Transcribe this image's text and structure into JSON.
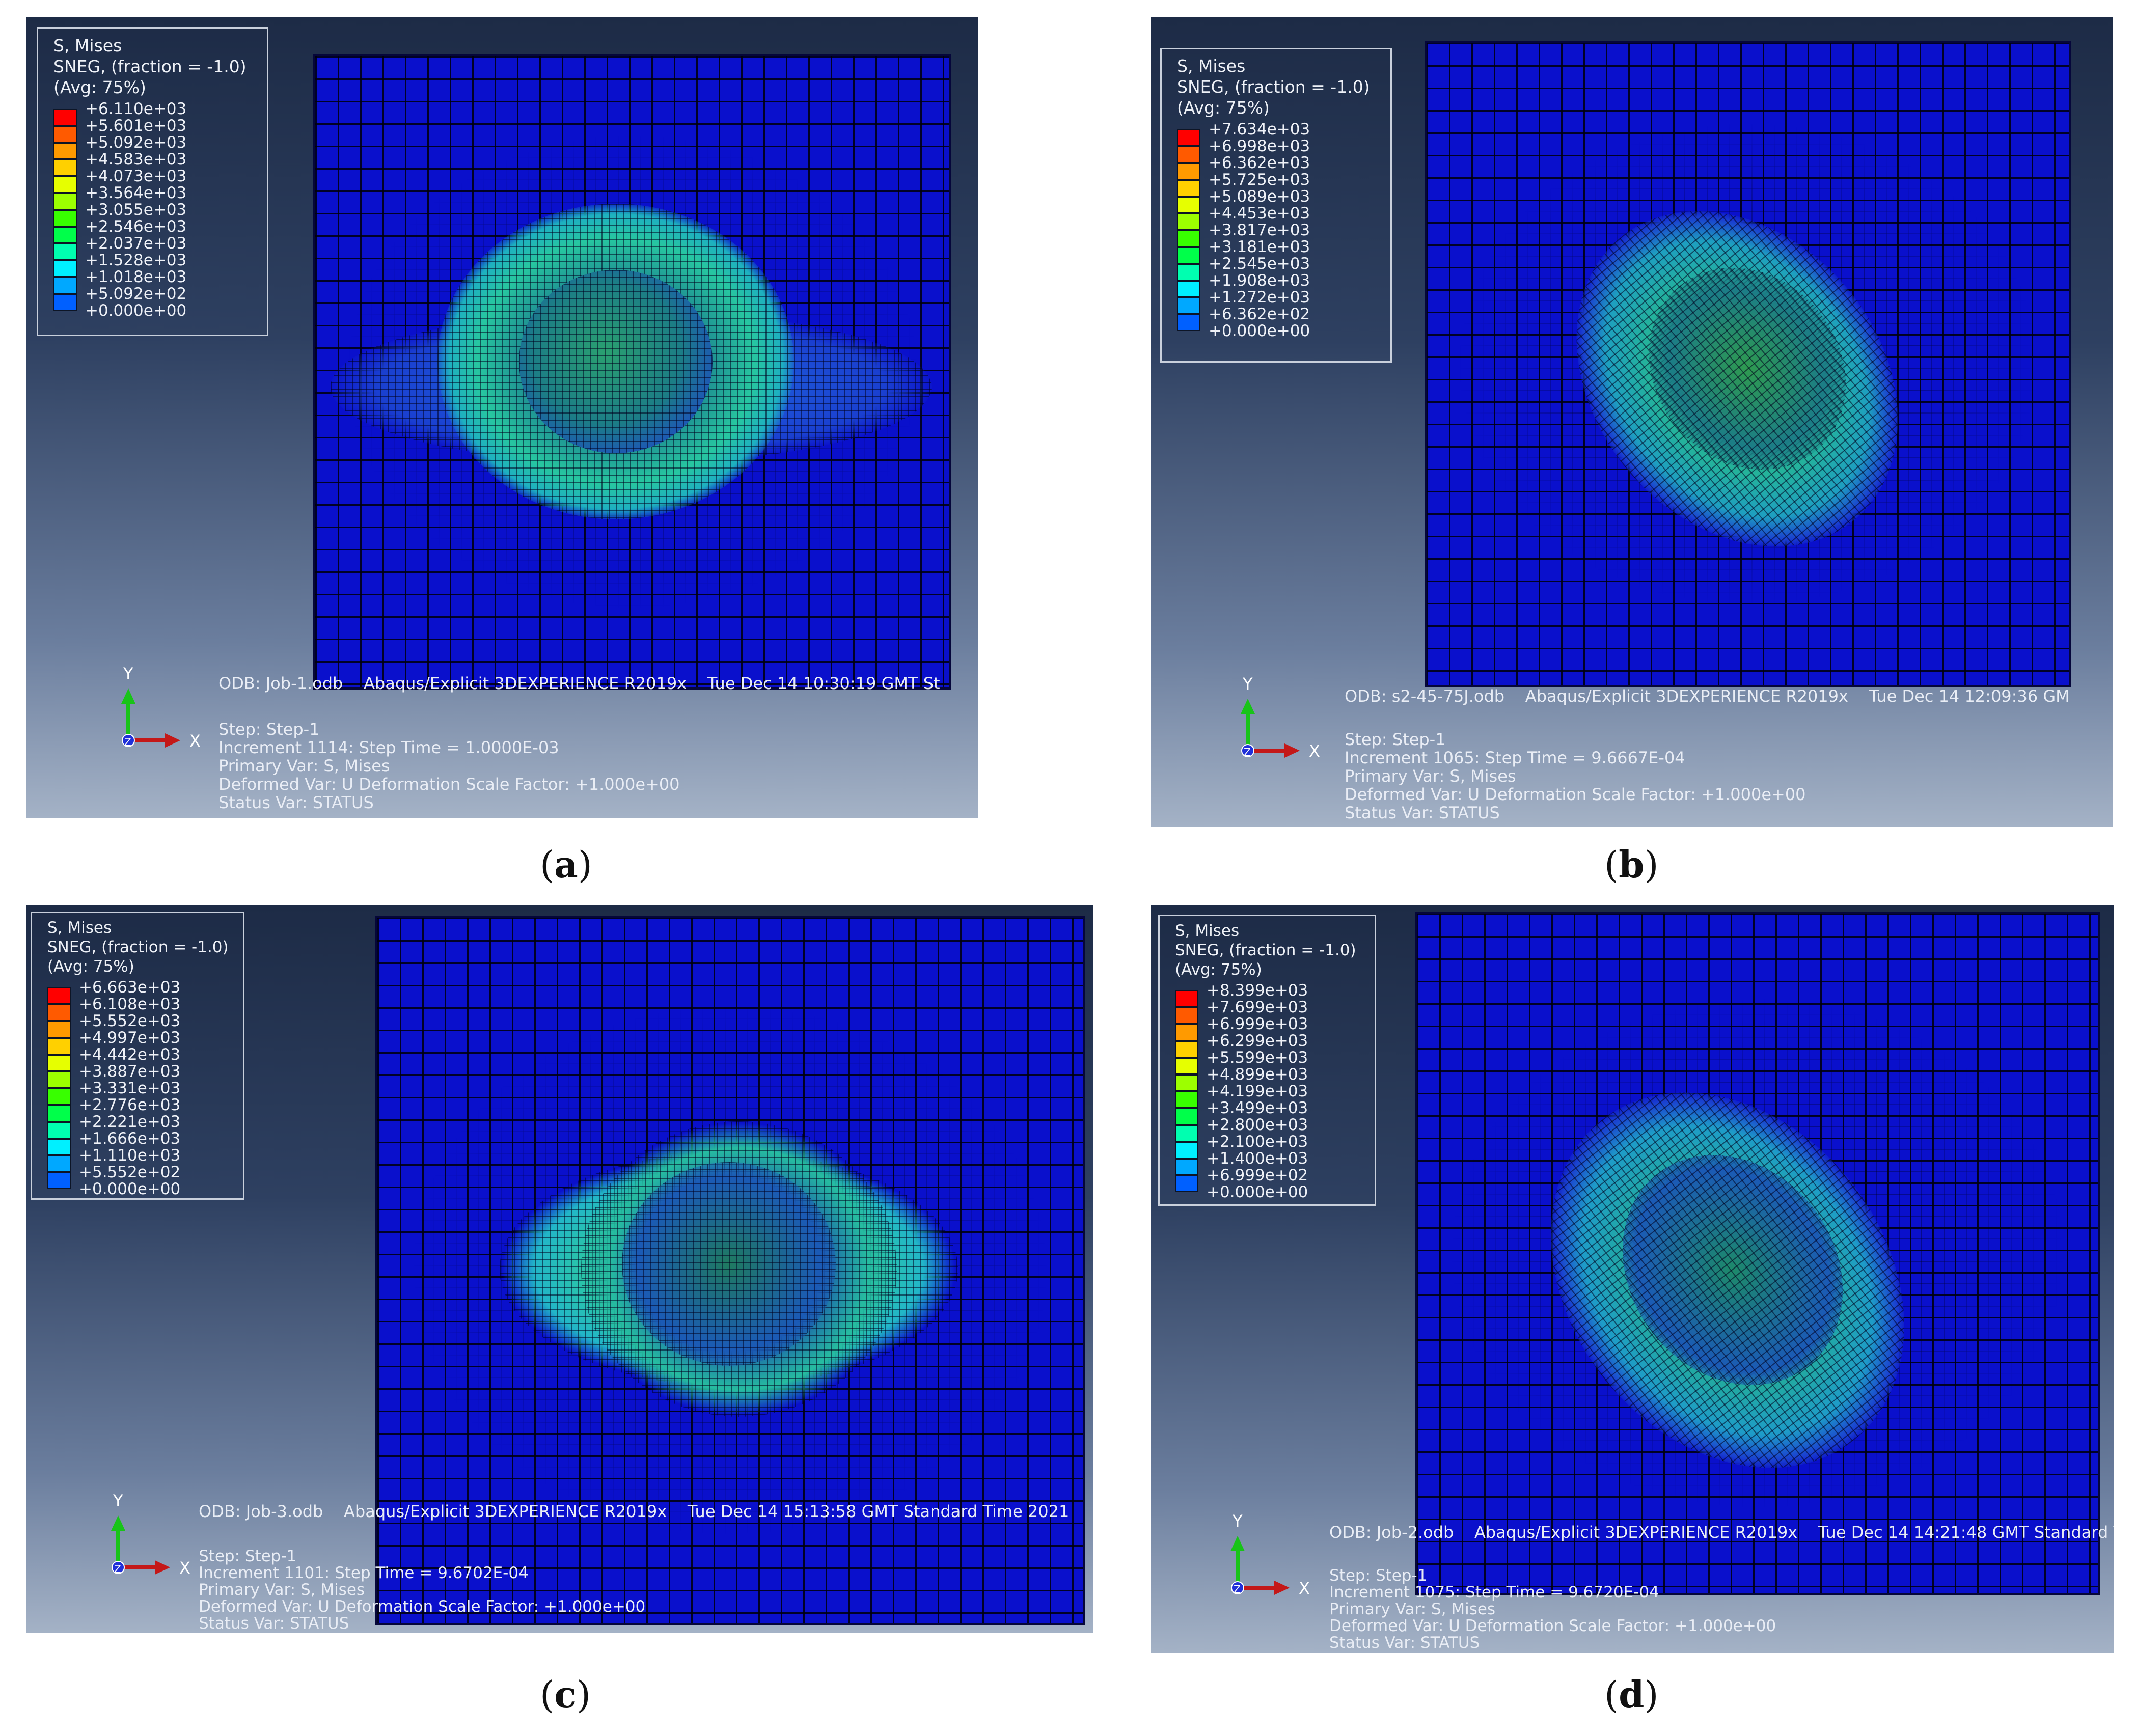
{
  "colors": {
    "mesh_blue": "#0a10cc",
    "legend_scale": [
      "#ff0000",
      "#ff5a00",
      "#ff9a00",
      "#ffd000",
      "#e6ff00",
      "#9cff00",
      "#38ff00",
      "#00ff4a",
      "#00ffb0",
      "#00f0ff",
      "#00a8ff",
      "#0060ff",
      "#0000ff"
    ]
  },
  "panels": [
    {
      "caption": "a",
      "legend_header": [
        "S, Mises",
        "SNEG, (fraction = -1.0)",
        "(Avg: 75%)"
      ],
      "legend_values": [
        "+6.110e+03",
        "+5.601e+03",
        "+5.092e+03",
        "+4.583e+03",
        "+4.073e+03",
        "+3.564e+03",
        "+3.055e+03",
        "+2.546e+03",
        "+2.037e+03",
        "+1.528e+03",
        "+1.018e+03",
        "+5.092e+02",
        "+0.000e+00"
      ],
      "odb": "ODB: Job-1.odb",
      "solver": "Abaqus/Explicit 3DEXPERIENCE R2019x",
      "date": "Tue Dec 14 10:30:19 GMT St",
      "step": "Step: Step-1",
      "increment": "Increment      1114: Step Time =    1.0000E-03",
      "primary": "Primary Var: S, Mises",
      "deformed": "Deformed Var: U   Deformation Scale Factor: +1.000e+00",
      "status": "Status Var: STATUS",
      "axis_y": "Y",
      "axis_x": "X",
      "axis_z": "Z"
    },
    {
      "caption": "b",
      "legend_header": [
        "S, Mises",
        "SNEG, (fraction = -1.0)",
        "(Avg: 75%)"
      ],
      "legend_values": [
        "+7.634e+03",
        "+6.998e+03",
        "+6.362e+03",
        "+5.725e+03",
        "+5.089e+03",
        "+4.453e+03",
        "+3.817e+03",
        "+3.181e+03",
        "+2.545e+03",
        "+1.908e+03",
        "+1.272e+03",
        "+6.362e+02",
        "+0.000e+00"
      ],
      "odb": "ODB: s2-45-75J.odb",
      "solver": "Abaqus/Explicit 3DEXPERIENCE R2019x",
      "date": "Tue Dec 14 12:09:36 GM",
      "step": "Step: Step-1",
      "increment": "Increment      1065: Step Time =    9.6667E-04",
      "primary": "Primary Var: S, Mises",
      "deformed": "Deformed Var: U   Deformation Scale Factor: +1.000e+00",
      "status": "Status Var: STATUS",
      "axis_y": "Y",
      "axis_x": "X",
      "axis_z": "Z"
    },
    {
      "caption": "c",
      "legend_header": [
        "S, Mises",
        "SNEG, (fraction = -1.0)",
        "(Avg: 75%)"
      ],
      "legend_values": [
        "+6.663e+03",
        "+6.108e+03",
        "+5.552e+03",
        "+4.997e+03",
        "+4.442e+03",
        "+3.887e+03",
        "+3.331e+03",
        "+2.776e+03",
        "+2.221e+03",
        "+1.666e+03",
        "+1.110e+03",
        "+5.552e+02",
        "+0.000e+00"
      ],
      "odb": "ODB: Job-3.odb",
      "solver": "Abaqus/Explicit 3DEXPERIENCE R2019x",
      "date": "Tue Dec 14 15:13:58 GMT Standard Time 2021",
      "step": "Step: Step-1",
      "increment": "Increment      1101: Step Time =    9.6702E-04",
      "primary": "Primary Var: S, Mises",
      "deformed": "Deformed Var: U   Deformation Scale Factor: +1.000e+00",
      "status": "Status Var: STATUS",
      "axis_y": "Y",
      "axis_x": "X",
      "axis_z": "Z"
    },
    {
      "caption": "d",
      "legend_header": [
        "S, Mises",
        "SNEG, (fraction = -1.0)",
        "(Avg: 75%)"
      ],
      "legend_values": [
        "+8.399e+03",
        "+7.699e+03",
        "+6.999e+03",
        "+6.299e+03",
        "+5.599e+03",
        "+4.899e+03",
        "+4.199e+03",
        "+3.499e+03",
        "+2.800e+03",
        "+2.100e+03",
        "+1.400e+03",
        "+6.999e+02",
        "+0.000e+00"
      ],
      "odb": "ODB: Job-2.odb",
      "solver": "Abaqus/Explicit 3DEXPERIENCE R2019x",
      "date": "Tue Dec 14 14:21:48 GMT Standard Ti",
      "step": "Step: Step-1",
      "increment": "Increment      1075: Step Time =    9.6720E-04",
      "primary": "Primary Var: S, Mises",
      "deformed": "Deformed Var: U   Deformation Scale Factor: +1.000e+00",
      "status": "Status Var: STATUS",
      "axis_y": "Y",
      "axis_x": "X",
      "axis_z": "Z"
    }
  ]
}
